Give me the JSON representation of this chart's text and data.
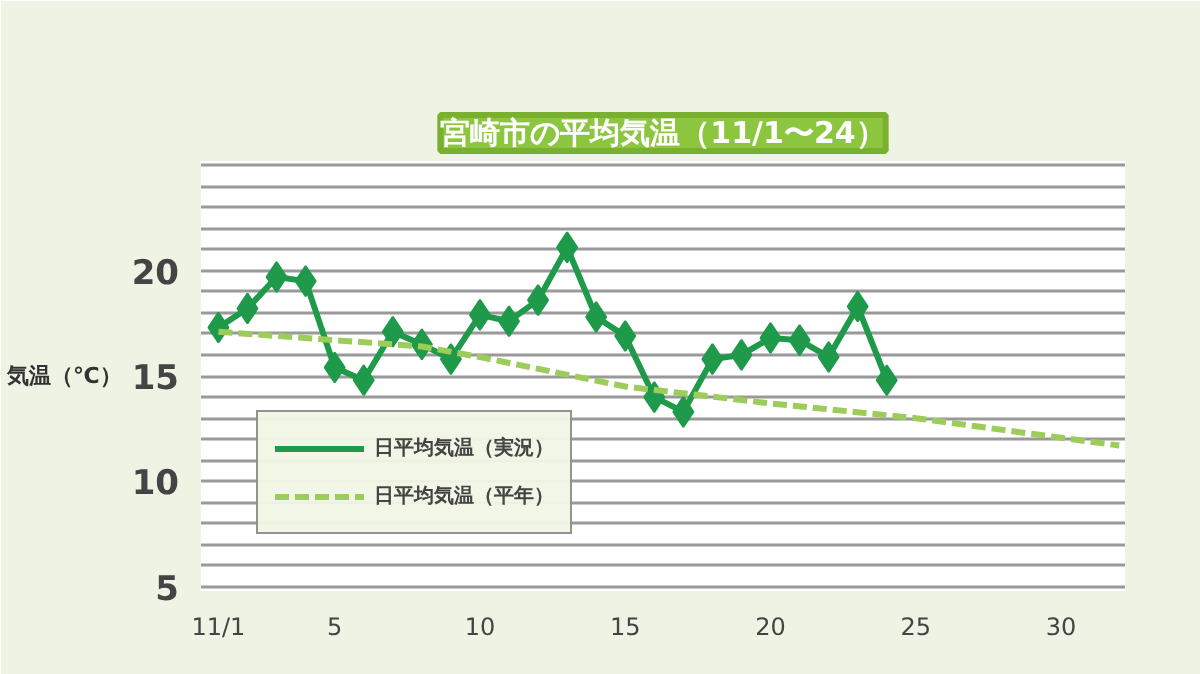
{
  "chart_data": {
    "type": "line",
    "title": "宮崎市の平均気温（11/1〜24）",
    "ylabel": "気温（℃）",
    "xlim": [
      0.4,
      32.2
    ],
    "ylim": [
      4.8,
      25.2
    ],
    "xticks": [
      {
        "value": 1,
        "label": "11/1"
      },
      5,
      10,
      15,
      20,
      25,
      30
    ],
    "yticks": [
      5,
      {
        "value": 6,
        "label": null
      },
      {
        "value": 7,
        "label": null
      },
      {
        "value": 8,
        "label": null
      },
      {
        "value": 9,
        "label": null
      },
      10,
      {
        "value": 11,
        "label": null
      },
      {
        "value": 12,
        "label": null
      },
      {
        "value": 13,
        "label": null
      },
      {
        "value": 14,
        "label": null
      },
      15,
      {
        "value": 16,
        "label": null
      },
      {
        "value": 17,
        "label": null
      },
      {
        "value": 18,
        "label": null
      },
      {
        "value": 19,
        "label": null
      },
      20,
      {
        "value": 21,
        "label": null
      },
      {
        "value": 22,
        "label": null
      },
      {
        "value": 23,
        "label": null
      },
      {
        "value": 24,
        "label": null
      },
      {
        "value": 25,
        "label": null
      }
    ],
    "grid": "y",
    "legend": "bottom left",
    "series": [
      {
        "name": "日平均気温（実況）",
        "color": "#1e9a4a",
        "marker": "diamond",
        "line_style": "solid",
        "x": [
          1,
          2,
          3,
          4,
          5,
          6,
          7,
          8,
          9,
          10,
          11,
          12,
          13,
          14,
          15,
          16,
          17,
          18,
          19,
          20,
          21,
          22,
          23,
          24
        ],
        "values": [
          17.3,
          18.2,
          19.7,
          19.5,
          15.4,
          14.8,
          17.1,
          16.5,
          15.8,
          17.9,
          17.6,
          18.6,
          21.1,
          17.8,
          16.9,
          14.0,
          13.3,
          15.8,
          16.0,
          16.8,
          16.7,
          15.9,
          18.3,
          14.8
        ]
      },
      {
        "name": "日平均気温（平年）",
        "color": "#9ccc5a",
        "marker": "none",
        "line_style": "dashed",
        "x": [
          1,
          8,
          10,
          15,
          20,
          25,
          32
        ],
        "values": [
          17.1,
          16.4,
          15.9,
          14.5,
          13.7,
          13.0,
          11.7
        ]
      }
    ]
  }
}
